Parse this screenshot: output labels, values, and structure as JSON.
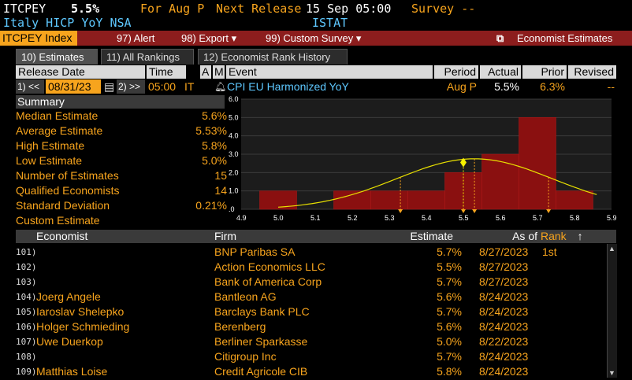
{
  "top": {
    "ticker": "ITCPEY",
    "value": "5.5%",
    "for_label": "For Aug P",
    "next_release_label": "Next Release",
    "next_release_value": "15 Sep 05:00",
    "survey_label": "Survey --",
    "description": "Italy HICP YoY NSA",
    "source": "ISTAT"
  },
  "menubar": {
    "ticker_button": "ITCPEY Index",
    "alert": "97) Alert",
    "export": "98) Export ▾",
    "custom_survey": "99) Custom Survey ▾",
    "economist_estimates": "Economist Estimates",
    "external_icon": "⧉"
  },
  "tabs": [
    {
      "label": "10) Estimates",
      "active": true
    },
    {
      "label": "11) All Rankings",
      "active": false
    },
    {
      "label": "12) Economist Rank History",
      "active": false
    }
  ],
  "header": {
    "release_date": "Release Date",
    "time": "Time",
    "a": "A",
    "m": "M",
    "event": "Event",
    "period": "Period",
    "actual": "Actual",
    "prior": "Prior",
    "revised": "Revised"
  },
  "controls": {
    "prev": "1) <<",
    "date": "08/31/23",
    "next": "2) >>",
    "time": "05:00",
    "country": "IT",
    "event": "CPI EU Harmonized YoY",
    "period": "Aug P",
    "actual": "5.5%",
    "prior": "6.3%",
    "revised": "--"
  },
  "summary": {
    "title": "Summary",
    "rows": [
      {
        "label": "Median Estimate",
        "value": "5.6%"
      },
      {
        "label": "Average Estimate",
        "value": "5.53%"
      },
      {
        "label": "High Estimate",
        "value": "5.8%"
      },
      {
        "label": "Low Estimate",
        "value": "5.0%"
      },
      {
        "label": "Number of Estimates",
        "value": "15"
      },
      {
        "label": "Qualified Economists",
        "value": "14"
      },
      {
        "label": "Standard Deviation",
        "value": "0.21%"
      },
      {
        "label": "Custom Estimate",
        "value": ""
      }
    ]
  },
  "chart_data": {
    "type": "bar",
    "x_ticks": [
      "4.9",
      "5.0",
      "5.1",
      "5.2",
      "5.3",
      "5.4",
      "5.5",
      "5.6",
      "5.7",
      "5.8",
      "5.9"
    ],
    "y_ticks": [
      ".0",
      "1.0",
      "2.0",
      "3.0",
      "4.0",
      "5.0",
      "6.0"
    ],
    "ylim": [
      0,
      6
    ],
    "xlim": [
      4.9,
      5.9
    ],
    "bins": [
      {
        "x": 5.0,
        "count": 1
      },
      {
        "x": 5.1,
        "count": 0
      },
      {
        "x": 5.2,
        "count": 1
      },
      {
        "x": 5.3,
        "count": 1
      },
      {
        "x": 5.4,
        "count": 1
      },
      {
        "x": 5.5,
        "count": 2
      },
      {
        "x": 5.6,
        "count": 3
      },
      {
        "x": 5.7,
        "count": 5
      },
      {
        "x": 5.8,
        "count": 1
      }
    ],
    "curve_color": "#e8e000",
    "bar_color": "#8a1010",
    "marker_actual": 5.5,
    "markers_low_high": [
      5.33,
      5.53,
      5.73
    ]
  },
  "table": {
    "headers": {
      "economist": "Economist",
      "firm": "Firm",
      "estimate": "Estimate",
      "as_of": "As of",
      "rank": "Rank",
      "sort": "↑"
    },
    "rows": [
      {
        "idx": "101)",
        "name": "",
        "firm": "BNP Paribas SA",
        "estimate": "5.7%",
        "as_of": "8/27/2023",
        "rank": "1st"
      },
      {
        "idx": "102)",
        "name": "",
        "firm": "Action Economics LLC",
        "estimate": "5.5%",
        "as_of": "8/27/2023",
        "rank": ""
      },
      {
        "idx": "103)",
        "name": "",
        "firm": "Bank of America Corp",
        "estimate": "5.7%",
        "as_of": "8/27/2023",
        "rank": ""
      },
      {
        "idx": "104)",
        "name": "Joerg Angele",
        "firm": "Bantleon AG",
        "estimate": "5.6%",
        "as_of": "8/24/2023",
        "rank": ""
      },
      {
        "idx": "105)",
        "name": "Iaroslav Shelepko",
        "firm": "Barclays Bank PLC",
        "estimate": "5.7%",
        "as_of": "8/24/2023",
        "rank": ""
      },
      {
        "idx": "106)",
        "name": "Holger Schmieding",
        "firm": "Berenberg",
        "estimate": "5.6%",
        "as_of": "8/24/2023",
        "rank": ""
      },
      {
        "idx": "107)",
        "name": "Uwe Duerkop",
        "firm": "Berliner Sparkasse",
        "estimate": "5.0%",
        "as_of": "8/22/2023",
        "rank": ""
      },
      {
        "idx": "108)",
        "name": "",
        "firm": "Citigroup Inc",
        "estimate": "5.7%",
        "as_of": "8/24/2023",
        "rank": ""
      },
      {
        "idx": "109)",
        "name": "Matthias Loise",
        "firm": "Credit Agricole CIB",
        "estimate": "5.8%",
        "as_of": "8/24/2023",
        "rank": ""
      }
    ]
  }
}
